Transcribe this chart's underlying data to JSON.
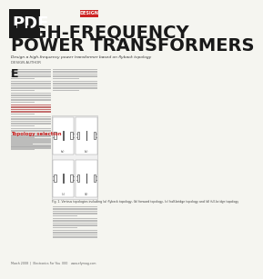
{
  "bg_color": "#f5f5f0",
  "header_bg": "#1a1a1a",
  "header_text": "PDF",
  "title_line1": "HIGH-FREQUENCY",
  "title_line2": "POWER TRANSFORMERS",
  "subtitle": "Design a high-frequency power transformer based on flyback topology",
  "design_badge_color": "#cc2222",
  "design_badge_text": "DESIGN",
  "section_header_color": "#cc2222",
  "section_title": "Topology selection",
  "highlight_color": "#cc2222",
  "figure_area_color": "#f0f0f0",
  "footer_text": "Fig. 1. Various topologies including (a) flyback topology, (b) forward topology, (c) half-bridge topology and (d) full-bridge topology",
  "footer_page": "March 2008  |  Electronics For You  000",
  "footer_web": "www.efymag.com"
}
